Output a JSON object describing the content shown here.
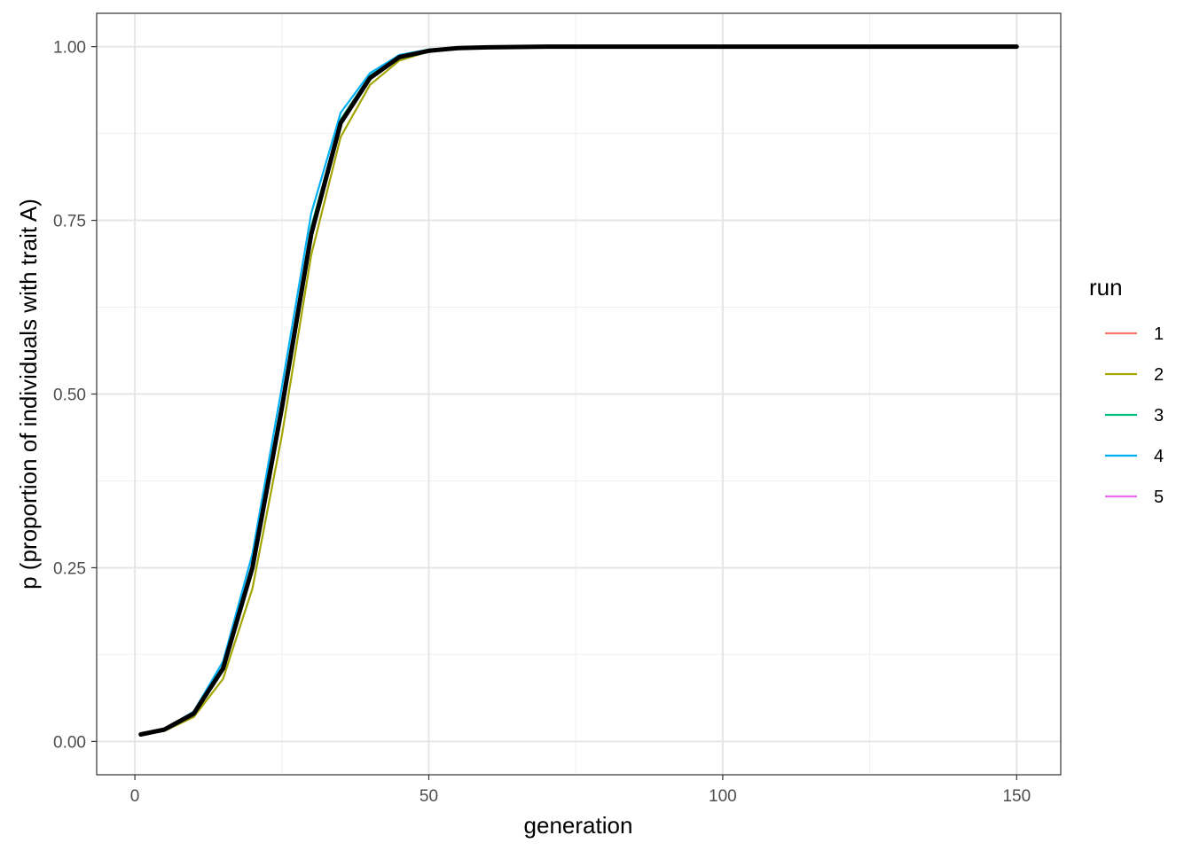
{
  "chart_data": {
    "type": "line",
    "title": "",
    "xlabel": "generation",
    "ylabel": "p (proportion of individuals with trait A)",
    "xlim": [
      -6.5,
      157.5
    ],
    "ylim": [
      -0.048,
      1.048
    ],
    "x_ticks": [
      0,
      50,
      100,
      150
    ],
    "x_tick_labels": [
      "0",
      "50",
      "100",
      "150"
    ],
    "y_ticks": [
      0,
      0.25,
      0.5,
      0.75,
      1
    ],
    "y_tick_labels": [
      "0.00",
      "0.25",
      "0.50",
      "0.75",
      "1.00"
    ],
    "grid": true,
    "legend": {
      "title": "run",
      "position": "right"
    },
    "series": [
      {
        "name": "1",
        "color": "#F8766D",
        "x": [
          1,
          5,
          10,
          15,
          20,
          25,
          30,
          35,
          40,
          45,
          50,
          55,
          60,
          70,
          80,
          100,
          150
        ],
        "y": [
          0.01,
          0.017,
          0.04,
          0.105,
          0.25,
          0.48,
          0.73,
          0.89,
          0.955,
          0.985,
          0.994,
          0.998,
          0.999,
          1.0,
          1.0,
          1.0,
          1.0
        ]
      },
      {
        "name": "2",
        "color": "#A3A500",
        "x": [
          1,
          5,
          10,
          15,
          20,
          25,
          30,
          35,
          40,
          45,
          50,
          55,
          60,
          70,
          80,
          100,
          150
        ],
        "y": [
          0.01,
          0.015,
          0.035,
          0.09,
          0.22,
          0.44,
          0.7,
          0.87,
          0.945,
          0.98,
          0.993,
          0.998,
          0.999,
          1.0,
          1.0,
          1.0,
          1.0
        ]
      },
      {
        "name": "3",
        "color": "#00BF7D",
        "x": [
          1,
          5,
          10,
          15,
          20,
          25,
          30,
          35,
          40,
          45,
          50,
          55,
          60,
          70,
          80,
          100,
          150
        ],
        "y": [
          0.01,
          0.017,
          0.041,
          0.108,
          0.255,
          0.49,
          0.74,
          0.895,
          0.958,
          0.986,
          0.995,
          0.998,
          0.999,
          1.0,
          1.0,
          1.0,
          1.0
        ]
      },
      {
        "name": "4",
        "color": "#00B0F6",
        "x": [
          1,
          5,
          10,
          15,
          20,
          25,
          30,
          35,
          40,
          45,
          50,
          55,
          60,
          70,
          80,
          100,
          150
        ],
        "y": [
          0.01,
          0.018,
          0.043,
          0.115,
          0.27,
          0.51,
          0.76,
          0.905,
          0.962,
          0.988,
          0.996,
          0.999,
          1.0,
          1.0,
          1.0,
          1.0,
          1.0
        ]
      },
      {
        "name": "5",
        "color": "#E76BF3",
        "x": [
          1,
          5,
          10,
          15,
          20,
          25,
          30,
          35,
          40,
          45,
          50,
          55,
          60,
          70,
          80,
          100,
          150
        ],
        "y": [
          0.01,
          0.017,
          0.04,
          0.105,
          0.25,
          0.485,
          0.735,
          0.892,
          0.956,
          0.985,
          0.994,
          0.998,
          0.999,
          1.0,
          1.0,
          1.0,
          1.0
        ]
      },
      {
        "name": "",
        "color": "#000000",
        "x": [
          1,
          5,
          10,
          15,
          20,
          25,
          30,
          35,
          40,
          45,
          50,
          55,
          60,
          70,
          80,
          100,
          150
        ],
        "y": [
          0.01,
          0.017,
          0.04,
          0.105,
          0.25,
          0.48,
          0.73,
          0.89,
          0.955,
          0.985,
          0.994,
          0.998,
          0.999,
          1.0,
          1.0,
          1.0,
          1.0
        ]
      }
    ]
  }
}
